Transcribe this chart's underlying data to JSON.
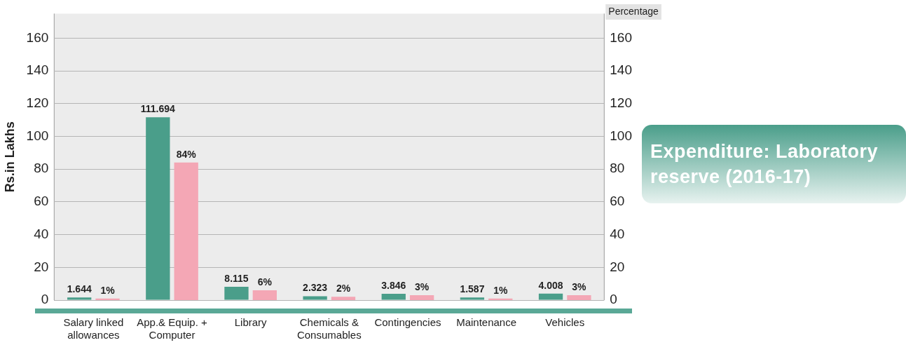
{
  "chart_data": {
    "type": "bar",
    "title": "Expenditure: Laboratory reserve (2016-17)",
    "ylabel": "Rs.in Lakhs",
    "y2label": "Percentage",
    "categories": [
      "Salary linked allowances",
      "App.& Equip. + Computer",
      "Library",
      "Chemicals & Consumables",
      "Contingencies",
      "Maintenance",
      "Vehicles"
    ],
    "series": [
      {
        "color": "#4a9e8a",
        "values": [
          1.644,
          111.694,
          8.115,
          2.323,
          3.846,
          1.587,
          4.008
        ],
        "value_labels": [
          "1.644",
          "111.694",
          "8.115",
          "2.323",
          "3.846",
          "1.587",
          "4.008"
        ]
      },
      {
        "color": "#f4a7b5",
        "axis": "y2",
        "values": [
          1,
          84,
          6,
          2,
          3,
          1,
          3
        ],
        "value_labels": [
          "1%",
          "84%",
          "6%",
          "2%",
          "3%",
          "1%",
          "3%"
        ]
      }
    ],
    "ylim": [
      0,
      175
    ],
    "yticks": [
      0,
      20,
      40,
      60,
      80,
      100,
      120,
      140,
      160
    ],
    "y2lim": [
      0,
      175
    ],
    "y2ticks": [
      0,
      20,
      40,
      60,
      80,
      100,
      120,
      140,
      160
    ],
    "grid": "y",
    "legend": false
  }
}
